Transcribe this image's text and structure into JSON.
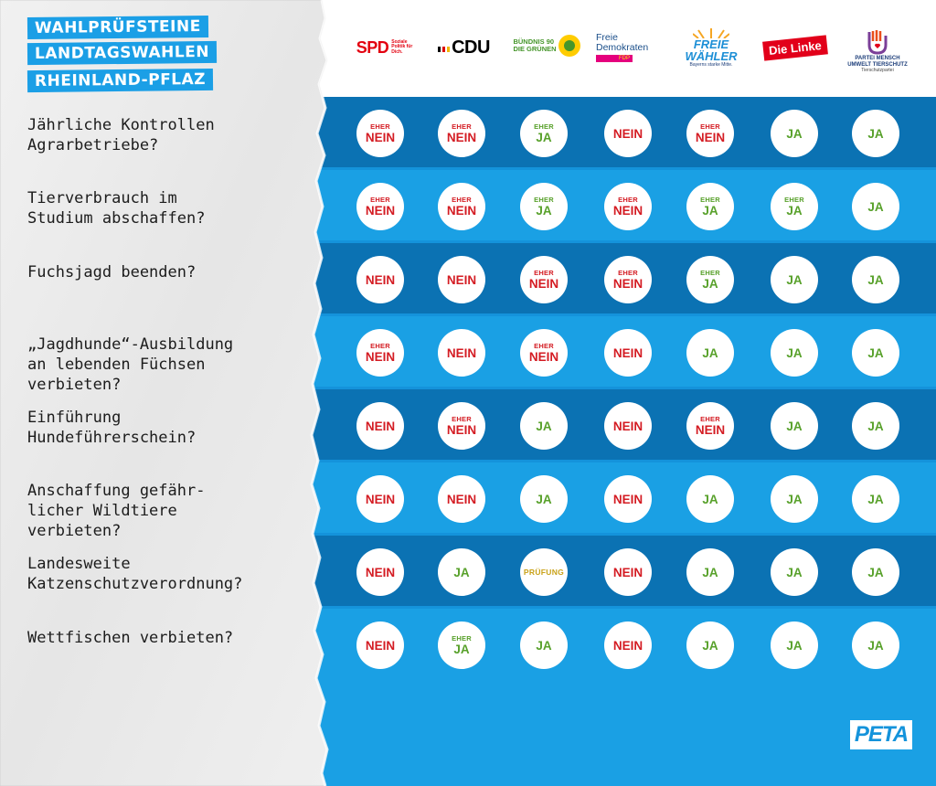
{
  "title_lines": [
    "WAHLPRÜFSTEINE",
    "LANDTAGSWAHLEN",
    "RHEINLAND-PFLAZ"
  ],
  "parties": {
    "spd": {
      "name": "SPD",
      "slogan": "Soziale Politik für Dich."
    },
    "cdu": {
      "name": "CDU"
    },
    "gruene": {
      "line1": "BÜNDNIS 90",
      "line2": "DIE GRÜNEN"
    },
    "fdp": {
      "line1": "Freie",
      "line2": "Demokraten",
      "badge": "FDP"
    },
    "fw": {
      "line1": "FREIE",
      "line2": "WÄHLER",
      "slogan": "Bayerns starke Mitte."
    },
    "linke": {
      "name": "Die Linke"
    },
    "tierschutz": {
      "line1": "PARTEI MENSCH",
      "line2": "UMWELT TIERSCHUTZ",
      "sub": "Tierschutzpartei"
    }
  },
  "rows": [
    {
      "question": "Jährliche Kontrollen\nAgrarbetriebe?",
      "answers": [
        {
          "pre": "EHER",
          "main": "NEIN",
          "type": "nein"
        },
        {
          "pre": "EHER",
          "main": "NEIN",
          "type": "nein"
        },
        {
          "pre": "EHER",
          "main": "JA",
          "type": "ja"
        },
        {
          "pre": "",
          "main": "NEIN",
          "type": "nein"
        },
        {
          "pre": "EHER",
          "main": "NEIN",
          "type": "nein"
        },
        {
          "pre": "",
          "main": "JA",
          "type": "ja"
        },
        {
          "pre": "",
          "main": "JA",
          "type": "ja"
        }
      ]
    },
    {
      "question": "Tierverbrauch im\nStudium abschaffen?",
      "answers": [
        {
          "pre": "EHER",
          "main": "NEIN",
          "type": "nein"
        },
        {
          "pre": "EHER",
          "main": "NEIN",
          "type": "nein"
        },
        {
          "pre": "EHER",
          "main": "JA",
          "type": "ja"
        },
        {
          "pre": "EHER",
          "main": "NEIN",
          "type": "nein"
        },
        {
          "pre": "EHER",
          "main": "JA",
          "type": "ja"
        },
        {
          "pre": "EHER",
          "main": "JA",
          "type": "ja"
        },
        {
          "pre": "",
          "main": "JA",
          "type": "ja"
        }
      ]
    },
    {
      "question": "Fuchsjagd beenden?",
      "answers": [
        {
          "pre": "",
          "main": "NEIN",
          "type": "nein"
        },
        {
          "pre": "",
          "main": "NEIN",
          "type": "nein"
        },
        {
          "pre": "EHER",
          "main": "NEIN",
          "type": "nein"
        },
        {
          "pre": "EHER",
          "main": "NEIN",
          "type": "nein"
        },
        {
          "pre": "EHER",
          "main": "JA",
          "type": "ja"
        },
        {
          "pre": "",
          "main": "JA",
          "type": "ja"
        },
        {
          "pre": "",
          "main": "JA",
          "type": "ja"
        }
      ]
    },
    {
      "question": "„Jagdhunde“-Ausbildung\nan lebenden Füchsen\nverbieten?",
      "answers": [
        {
          "pre": "EHER",
          "main": "NEIN",
          "type": "nein"
        },
        {
          "pre": "",
          "main": "NEIN",
          "type": "nein"
        },
        {
          "pre": "EHER",
          "main": "NEIN",
          "type": "nein"
        },
        {
          "pre": "",
          "main": "NEIN",
          "type": "nein"
        },
        {
          "pre": "",
          "main": "JA",
          "type": "ja"
        },
        {
          "pre": "",
          "main": "JA",
          "type": "ja"
        },
        {
          "pre": "",
          "main": "JA",
          "type": "ja"
        }
      ]
    },
    {
      "question": "Einführung\nHundeführerschein?",
      "answers": [
        {
          "pre": "",
          "main": "NEIN",
          "type": "nein"
        },
        {
          "pre": "EHER",
          "main": "NEIN",
          "type": "nein"
        },
        {
          "pre": "",
          "main": "JA",
          "type": "ja"
        },
        {
          "pre": "",
          "main": "NEIN",
          "type": "nein"
        },
        {
          "pre": "EHER",
          "main": "NEIN",
          "type": "nein"
        },
        {
          "pre": "",
          "main": "JA",
          "type": "ja"
        },
        {
          "pre": "",
          "main": "JA",
          "type": "ja"
        }
      ]
    },
    {
      "question": "Anschaffung gefähr-\nlicher Wildtiere\nverbieten?",
      "answers": [
        {
          "pre": "",
          "main": "NEIN",
          "type": "nein"
        },
        {
          "pre": "",
          "main": "NEIN",
          "type": "nein"
        },
        {
          "pre": "",
          "main": "JA",
          "type": "ja"
        },
        {
          "pre": "",
          "main": "NEIN",
          "type": "nein"
        },
        {
          "pre": "",
          "main": "JA",
          "type": "ja"
        },
        {
          "pre": "",
          "main": "JA",
          "type": "ja"
        },
        {
          "pre": "",
          "main": "JA",
          "type": "ja"
        }
      ]
    },
    {
      "question": "Landesweite\nKatzenschutzverordnung?",
      "answers": [
        {
          "pre": "",
          "main": "NEIN",
          "type": "nein"
        },
        {
          "pre": "",
          "main": "JA",
          "type": "ja"
        },
        {
          "pre": "",
          "main": "PRÜFUNG",
          "type": "pruefung"
        },
        {
          "pre": "",
          "main": "NEIN",
          "type": "nein"
        },
        {
          "pre": "",
          "main": "JA",
          "type": "ja"
        },
        {
          "pre": "",
          "main": "JA",
          "type": "ja"
        },
        {
          "pre": "",
          "main": "JA",
          "type": "ja"
        }
      ]
    },
    {
      "question": "Wettfischen verbieten?",
      "answers": [
        {
          "pre": "",
          "main": "NEIN",
          "type": "nein"
        },
        {
          "pre": "EHER",
          "main": "JA",
          "type": "ja"
        },
        {
          "pre": "",
          "main": "JA",
          "type": "ja"
        },
        {
          "pre": "",
          "main": "NEIN",
          "type": "nein"
        },
        {
          "pre": "",
          "main": "JA",
          "type": "ja"
        },
        {
          "pre": "",
          "main": "JA",
          "type": "ja"
        },
        {
          "pre": "",
          "main": "JA",
          "type": "ja"
        }
      ]
    }
  ],
  "footer_logo": "PETA"
}
